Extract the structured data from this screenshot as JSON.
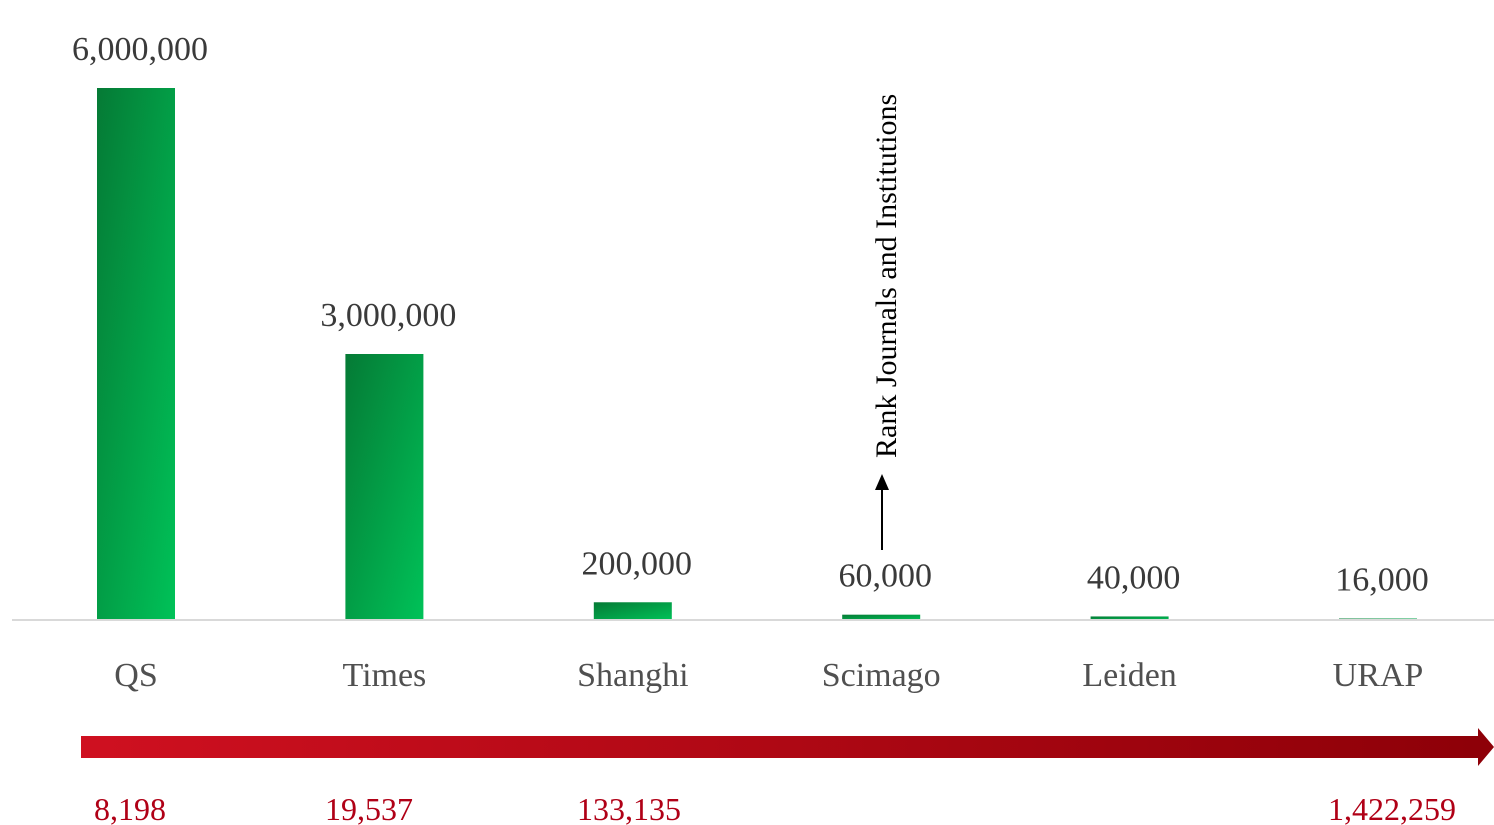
{
  "chart_data": {
    "type": "bar",
    "title": "",
    "xlabel": "",
    "ylabel": "",
    "categories": [
      "QS",
      "Times",
      "Shanghi",
      "Scimago",
      "Leiden",
      "URAP"
    ],
    "values": [
      6000000,
      3000000,
      200000,
      60000,
      40000,
      16000
    ],
    "value_labels": [
      "6,000,000",
      "3,000,000",
      "200,000",
      "60,000",
      "40,000",
      "16,000"
    ],
    "ylim": [
      0,
      6000000
    ],
    "grid": false,
    "bar_color": "#0b9a45",
    "annotation": {
      "text": "Rank Journals and Institutions",
      "category": "Scimago"
    },
    "secondary_values": [
      "8,198",
      "19,537",
      "133,135",
      "",
      "",
      "1,422,259"
    ],
    "secondary_color": "#b00016"
  }
}
